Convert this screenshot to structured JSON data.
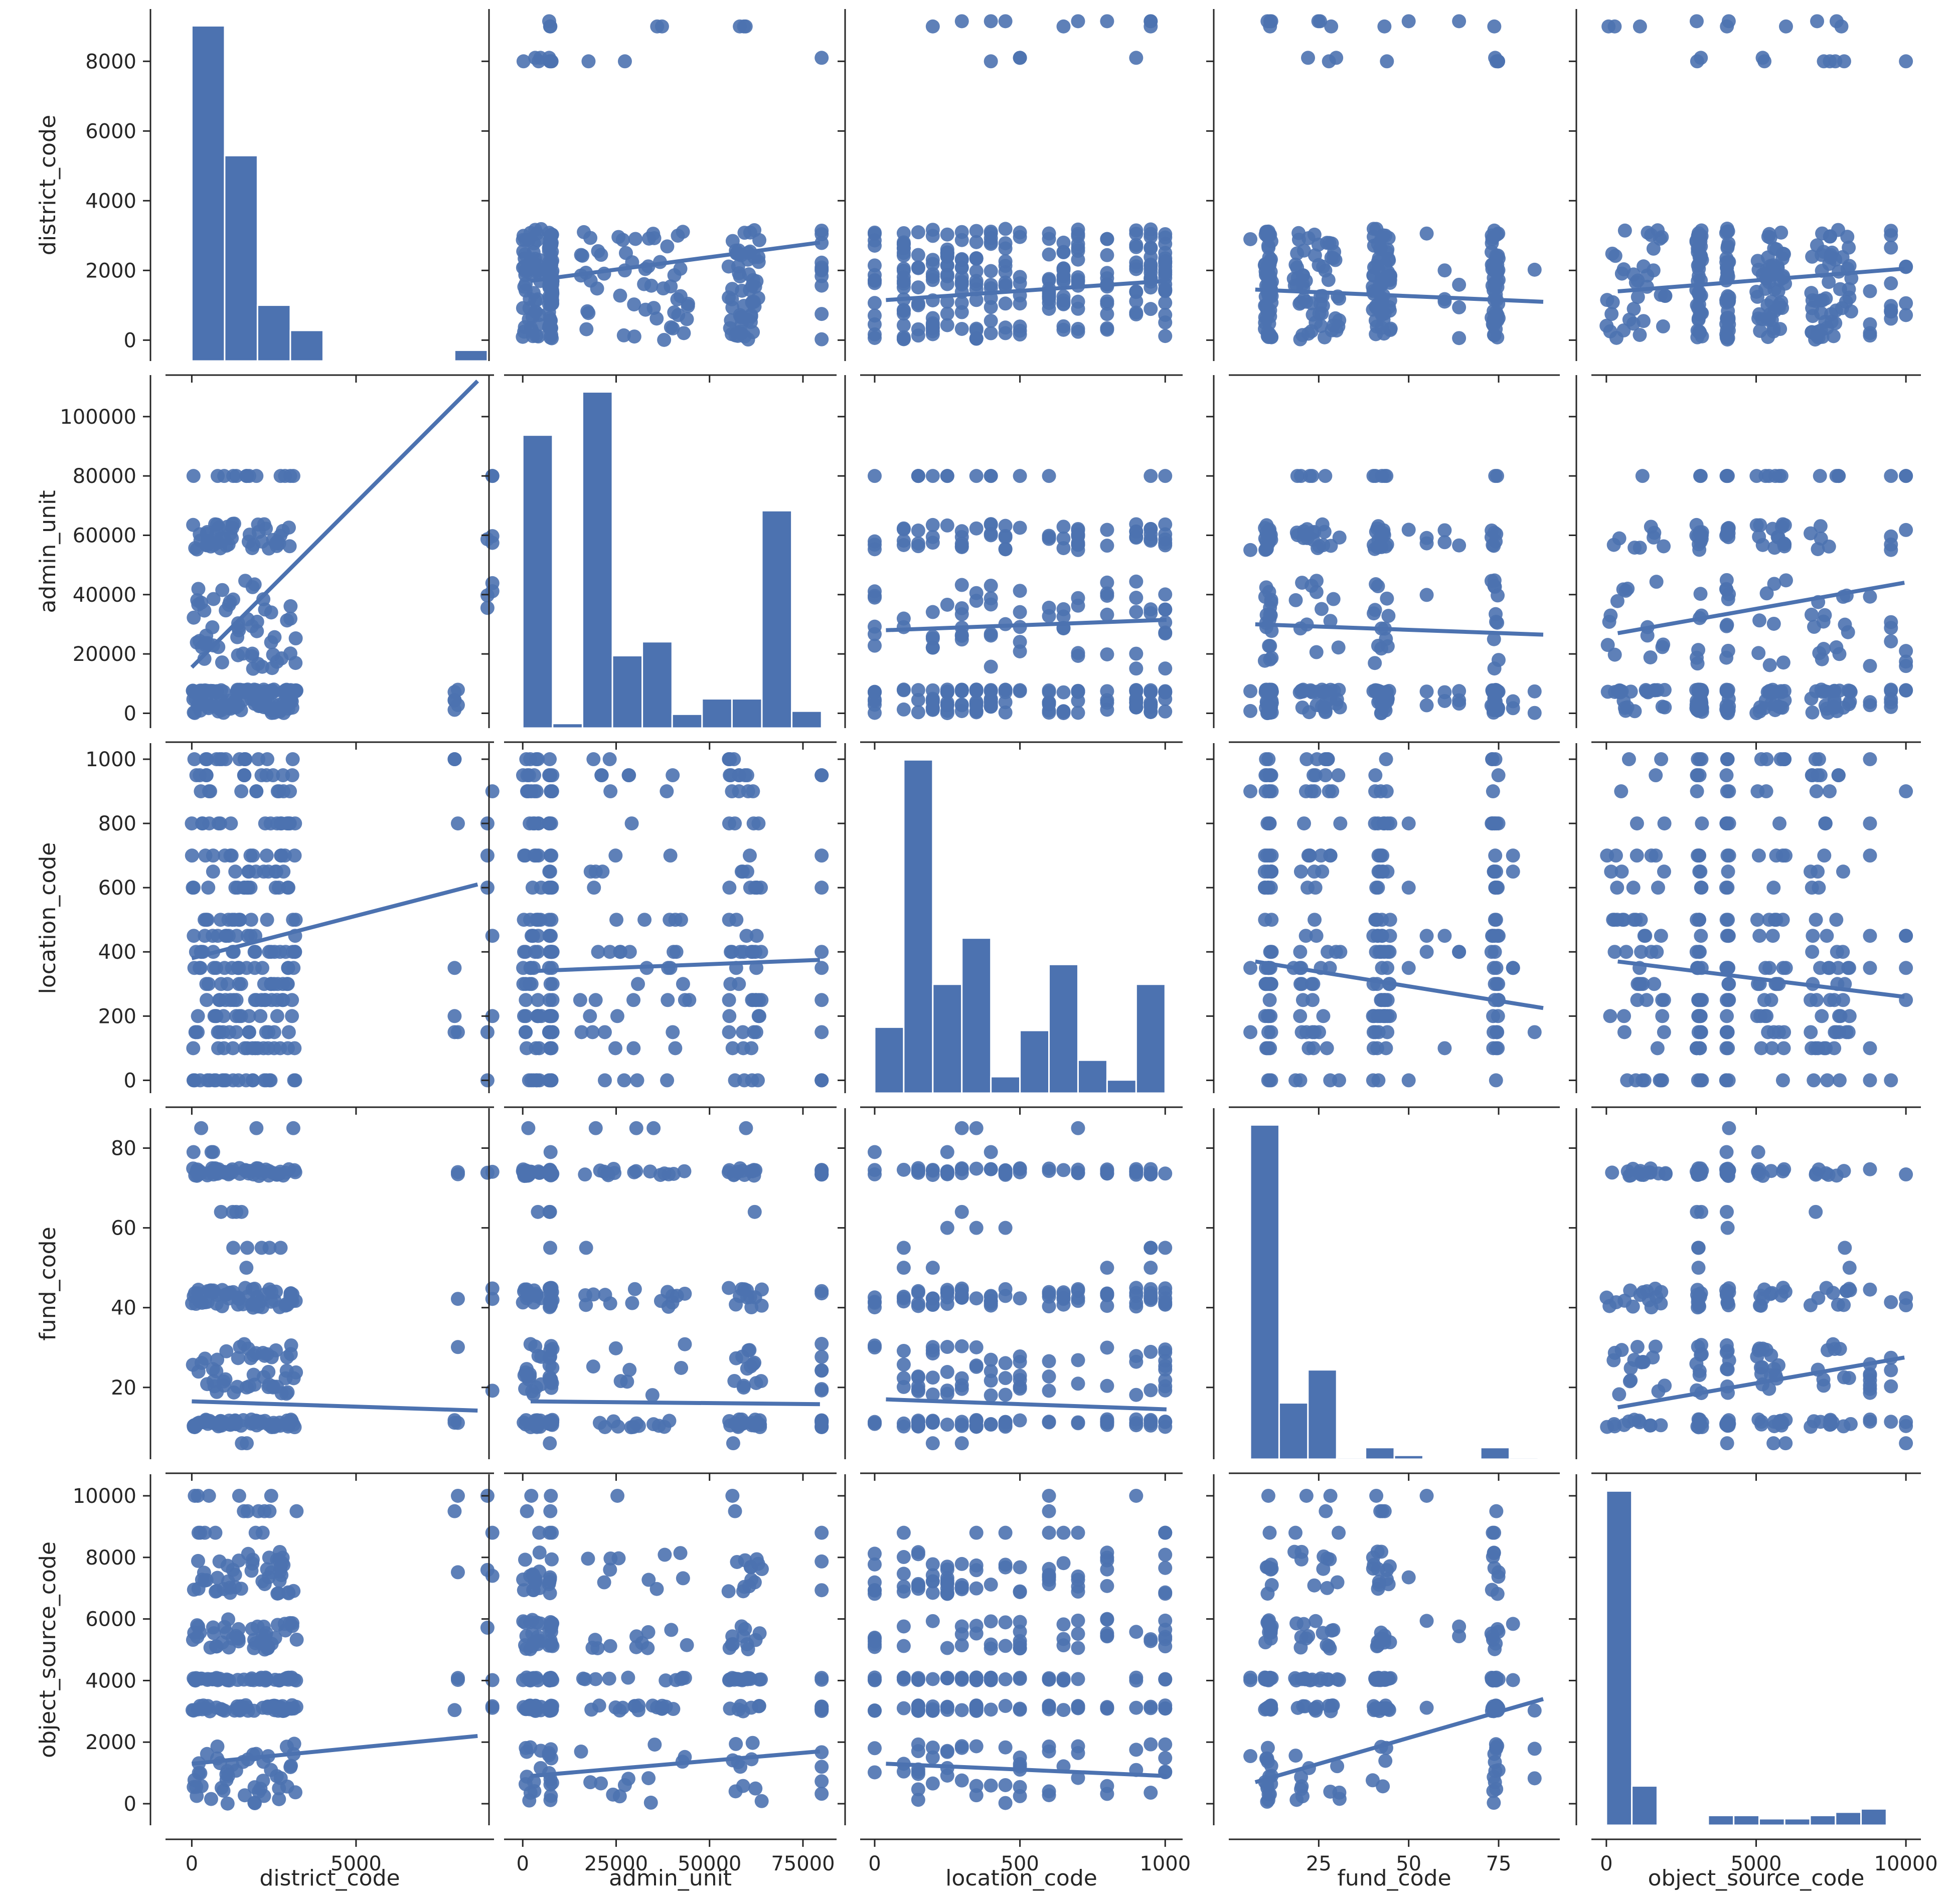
{
  "chart_data": {
    "type": "scatter",
    "kind": "pairplot",
    "variables": [
      "district_code",
      "admin_unit",
      "location_code",
      "fund_code",
      "object_source_code"
    ],
    "color": "#4c72b0",
    "grid": false,
    "diagonal": "histogram",
    "off_diagonal": "scatter with linear regression line",
    "axes": {
      "district_code": {
        "range": [
          -800,
          9200
        ],
        "ticks": [
          0,
          5000
        ],
        "tick_labels": [
          "0",
          "5000"
        ],
        "diag_ticks": [
          0,
          2000,
          4000,
          6000,
          8000
        ],
        "diag_tick_labels": [
          "0",
          "2000",
          "4000",
          "6000",
          "8000"
        ]
      },
      "admin_unit": {
        "range": [
          -5000,
          84000
        ],
        "ticks": [
          0,
          25000,
          50000,
          75000
        ],
        "tick_labels": [
          "0",
          "25000",
          "50000",
          "75000"
        ]
      },
      "location_code": {
        "range": [
          -50,
          1060
        ],
        "ticks": [
          0,
          500,
          1000
        ],
        "tick_labels": [
          "0",
          "500",
          "1000"
        ]
      },
      "fund_code": {
        "range": [
          0,
          92
        ],
        "ticks": [
          25,
          50,
          75
        ],
        "tick_labels": [
          "25",
          "50",
          "75"
        ]
      },
      "object_source_code": {
        "range": [
          -500,
          10500
        ],
        "ticks": [
          0,
          5000,
          10000
        ],
        "tick_labels": [
          "0",
          "5000",
          "10000"
        ]
      }
    },
    "y_axes": {
      "district_code": {
        "range": [
          -600,
          9500
        ],
        "ticks": [
          0,
          2000,
          4000,
          6000,
          8000
        ],
        "tick_labels": [
          "0",
          "2000",
          "4000",
          "6000",
          "8000"
        ]
      },
      "admin_unit": {
        "range": [
          -5000,
          114000
        ],
        "ticks": [
          0,
          20000,
          40000,
          60000,
          80000,
          100000
        ],
        "tick_labels": [
          "0",
          "20000",
          "40000",
          "60000",
          "80000",
          "100000"
        ]
      },
      "location_code": {
        "range": [
          -40,
          1050
        ],
        "ticks": [
          0,
          200,
          400,
          600,
          800,
          1000
        ],
        "tick_labels": [
          "0",
          "200",
          "400",
          "600",
          "800",
          "1000"
        ]
      },
      "fund_code": {
        "range": [
          2,
          90
        ],
        "ticks": [
          20,
          40,
          60,
          80
        ],
        "tick_labels": [
          "20",
          "40",
          "60",
          "80"
        ]
      },
      "object_source_code": {
        "range": [
          -700,
          10700
        ],
        "ticks": [
          0,
          2000,
          4000,
          6000,
          8000,
          10000
        ],
        "tick_labels": [
          "0",
          "2000",
          "4000",
          "6000",
          "8000",
          "10000"
        ]
      }
    },
    "histograms": {
      "district_code": {
        "bin_edges": [
          0,
          1000,
          2000,
          3000,
          4000,
          5000,
          6000,
          7000,
          8000,
          9000
        ],
        "counts": [
          9300,
          5700,
          1550,
          850,
          0,
          0,
          0,
          0,
          300,
          200
        ]
      },
      "admin_unit": {
        "bin_edges": [
          0,
          8000,
          16000,
          24000,
          32000,
          40000,
          48000,
          56000,
          64000,
          72000,
          80000
        ],
        "counts": [
          9500,
          150,
          10900,
          2350,
          2800,
          450,
          950,
          950,
          7050,
          550
        ]
      },
      "location_code": {
        "bin_edges": [
          0,
          100,
          200,
          300,
          400,
          500,
          600,
          700,
          800,
          900,
          1000
        ],
        "counts": [
          2000,
          10100,
          3300,
          4700,
          500,
          1900,
          3900,
          1000,
          400,
          3300
        ]
      },
      "fund_code": {
        "bin_edges": [
          6,
          14,
          22,
          30,
          38,
          46,
          54,
          62,
          70,
          78,
          86
        ],
        "counts": [
          8600,
          1450,
          2300,
          40,
          300,
          100,
          20,
          20,
          300,
          40
        ]
      },
      "object_source_code": {
        "bin_edges": [
          0,
          850,
          1700,
          2550,
          3400,
          4250,
          5100,
          5950,
          6800,
          7650,
          8500,
          9350,
          10200
        ],
        "counts": [
          10200,
          1200,
          0,
          0,
          300,
          300,
          200,
          200,
          300,
          400,
          500,
          0
        ]
      }
    },
    "regression_lines": {
      "district_code|admin_unit": [
        [
          1700,
          2800
        ]
      ],
      "admin_unit|district_code": [
        [
          15500,
          112000
        ]
      ],
      "location_code|district_code": [
        [
          380,
          610
        ]
      ],
      "fund_code|district_code": [
        [
          16.5,
          14.2
        ]
      ],
      "object_source_code|district_code": [
        [
          1300,
          2200
        ]
      ],
      "district_code|location_code": [
        [
          1150,
          1700
        ]
      ],
      "admin_unit|location_code": [
        [
          28000,
          31500
        ]
      ],
      "location_code|admin_unit": [
        [
          340,
          375
        ]
      ],
      "fund_code|admin_unit": [
        [
          16.5,
          15.8
        ]
      ],
      "object_source_code|admin_unit": [
        [
          900,
          1700
        ]
      ],
      "district_code|fund_code": [
        [
          1450,
          1100
        ]
      ],
      "admin_unit|fund_code": [
        [
          30000,
          26500
        ]
      ],
      "location_code|fund_code": [
        [
          370,
          225
        ]
      ],
      "fund_code|location_code": [
        [
          17,
          14.5
        ]
      ],
      "object_source_code|location_code": [
        [
          1300,
          900
        ]
      ],
      "district_code|object_source_code": [
        [
          1400,
          2050
        ]
      ],
      "admin_unit|object_source_code": [
        [
          27000,
          44000
        ]
      ],
      "location_code|object_source_code": [
        [
          370,
          260
        ]
      ],
      "fund_code|object_source_code": [
        [
          15,
          27.5
        ]
      ],
      "object_source_code|fund_code": [
        [
          700,
          3400
        ]
      ]
    },
    "value_clusters": {
      "district_code": {
        "dense": [
          [
            0,
            3200
          ]
        ],
        "sparse": [
          8000,
          8100,
          9000,
          9150
        ]
      },
      "admin_unit": {
        "dense": [
          [
            0,
            5000
          ],
          [
            7000,
            8000
          ],
          [
            15000,
            45000
          ],
          [
            55000,
            64000
          ]
        ],
        "sparse": [
          80000
        ]
      },
      "location_code": {
        "dense": [
          [
            0,
            0
          ],
          [
            100,
            100
          ],
          [
            150,
            150
          ],
          [
            200,
            200
          ],
          [
            250,
            250
          ],
          [
            300,
            300
          ],
          [
            350,
            350
          ],
          [
            400,
            400
          ],
          [
            450,
            450
          ],
          [
            500,
            500
          ],
          [
            600,
            600
          ],
          [
            650,
            650
          ],
          [
            700,
            700
          ],
          [
            800,
            800
          ],
          [
            900,
            900
          ],
          [
            950,
            950
          ],
          [
            1000,
            1000
          ]
        ],
        "sparse": []
      },
      "fund_code": {
        "dense": [
          [
            10,
            12
          ],
          [
            18,
            31
          ],
          [
            40,
            45
          ],
          [
            73,
            75
          ]
        ],
        "sparse": [
          6,
          50,
          55,
          60,
          64,
          79,
          85
        ]
      },
      "object_source_code": {
        "dense": [
          [
            0,
            2000
          ],
          [
            3000,
            3200
          ],
          [
            4000,
            4100
          ],
          [
            5000,
            6000
          ],
          [
            6800,
            8200
          ]
        ],
        "sparse": [
          8800,
          9500,
          10000
        ]
      }
    }
  }
}
